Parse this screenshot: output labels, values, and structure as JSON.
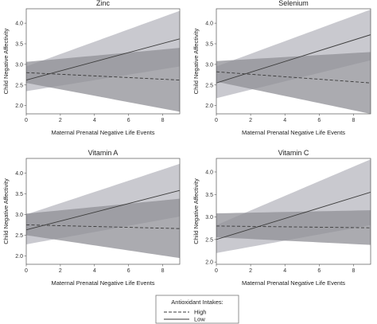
{
  "chart_data": [
    {
      "type": "line",
      "title": "Zinc",
      "xlabel": "Maternal Prenatal Negative Life Events",
      "ylabel": "Child Negative Affectivity",
      "xlim": [
        0,
        9
      ],
      "ylim": [
        1.8,
        4.35
      ],
      "xticks": [
        "0",
        "2",
        "4",
        "6",
        "8"
      ],
      "yticks": [
        "2.0",
        "2.5",
        "3.0",
        "3.5",
        "4.0"
      ],
      "series": [
        {
          "name": "High",
          "style": "dashed",
          "x": [
            0,
            9
          ],
          "y": [
            2.8,
            2.62
          ],
          "ci_lower": [
            2.55,
            1.85
          ],
          "ci_upper": [
            3.06,
            3.4
          ]
        },
        {
          "name": "Low",
          "style": "solid",
          "x": [
            0,
            9
          ],
          "y": [
            2.62,
            3.62
          ],
          "ci_lower": [
            2.35,
            2.95
          ],
          "ci_upper": [
            2.95,
            4.3
          ]
        }
      ]
    },
    {
      "type": "line",
      "title": "Selenium",
      "xlabel": "Maternal Prenatal Negative Life Events",
      "ylabel": "Child Negative Affectivity",
      "xlim": [
        0,
        9
      ],
      "ylim": [
        1.8,
        4.35
      ],
      "xticks": [
        "0",
        "2",
        "4",
        "6",
        "8"
      ],
      "yticks": [
        "2.0",
        "2.5",
        "3.0",
        "3.5",
        "4.0"
      ],
      "series": [
        {
          "name": "High",
          "style": "dashed",
          "x": [
            0,
            9
          ],
          "y": [
            2.82,
            2.55
          ],
          "ci_lower": [
            2.58,
            1.8
          ],
          "ci_upper": [
            3.08,
            3.3
          ]
        },
        {
          "name": "Low",
          "style": "solid",
          "x": [
            0,
            9
          ],
          "y": [
            2.55,
            3.72
          ],
          "ci_lower": [
            2.18,
            3.1
          ],
          "ci_upper": [
            2.95,
            4.33
          ]
        }
      ]
    },
    {
      "type": "line",
      "title": "Vitamin A",
      "xlabel": "Maternal Prenatal Negative Life Events",
      "ylabel": "Child Negative Affectivity",
      "xlim": [
        0,
        9
      ],
      "ylim": [
        1.8,
        4.35
      ],
      "xticks": [
        "0",
        "2",
        "4",
        "6",
        "8"
      ],
      "yticks": [
        "2.0",
        "2.5",
        "3.0",
        "3.5",
        "4.0"
      ],
      "series": [
        {
          "name": "High",
          "style": "dashed",
          "x": [
            0,
            9
          ],
          "y": [
            2.75,
            2.66
          ],
          "ci_lower": [
            2.5,
            1.95
          ],
          "ci_upper": [
            3.02,
            3.38
          ]
        },
        {
          "name": "Low",
          "style": "solid",
          "x": [
            0,
            9
          ],
          "y": [
            2.63,
            3.58
          ],
          "ci_lower": [
            2.28,
            2.95
          ],
          "ci_upper": [
            3.0,
            4.22
          ]
        }
      ]
    },
    {
      "type": "line",
      "title": "Vitamin C",
      "xlabel": "Maternal Prenatal Negative Life Events",
      "ylabel": "Child Negative Affectivity",
      "xlim": [
        0,
        9
      ],
      "ylim": [
        1.95,
        4.3
      ],
      "xticks": [
        "0",
        "2",
        "4",
        "6",
        "8"
      ],
      "yticks": [
        "2.0",
        "2.5",
        "3.0",
        "3.5",
        "4.0"
      ],
      "series": [
        {
          "name": "High",
          "style": "dashed",
          "x": [
            0,
            9
          ],
          "y": [
            2.8,
            2.76
          ],
          "ci_lower": [
            2.55,
            2.38
          ],
          "ci_upper": [
            3.08,
            3.15
          ]
        },
        {
          "name": "Low",
          "style": "solid",
          "x": [
            0,
            9
          ],
          "y": [
            2.5,
            3.55
          ],
          "ci_lower": [
            2.2,
            2.82
          ],
          "ci_upper": [
            2.82,
            4.28
          ]
        }
      ]
    }
  ],
  "legend": {
    "title": "Antioxidant Intakes:",
    "items": [
      {
        "label": "High",
        "style": "dashed"
      },
      {
        "label": "Low",
        "style": "solid"
      }
    ]
  },
  "colors": {
    "band_low": "#c9c9cf",
    "band_high": "#8f8f95",
    "line": "#3a3a3a",
    "axis": "#555555"
  }
}
